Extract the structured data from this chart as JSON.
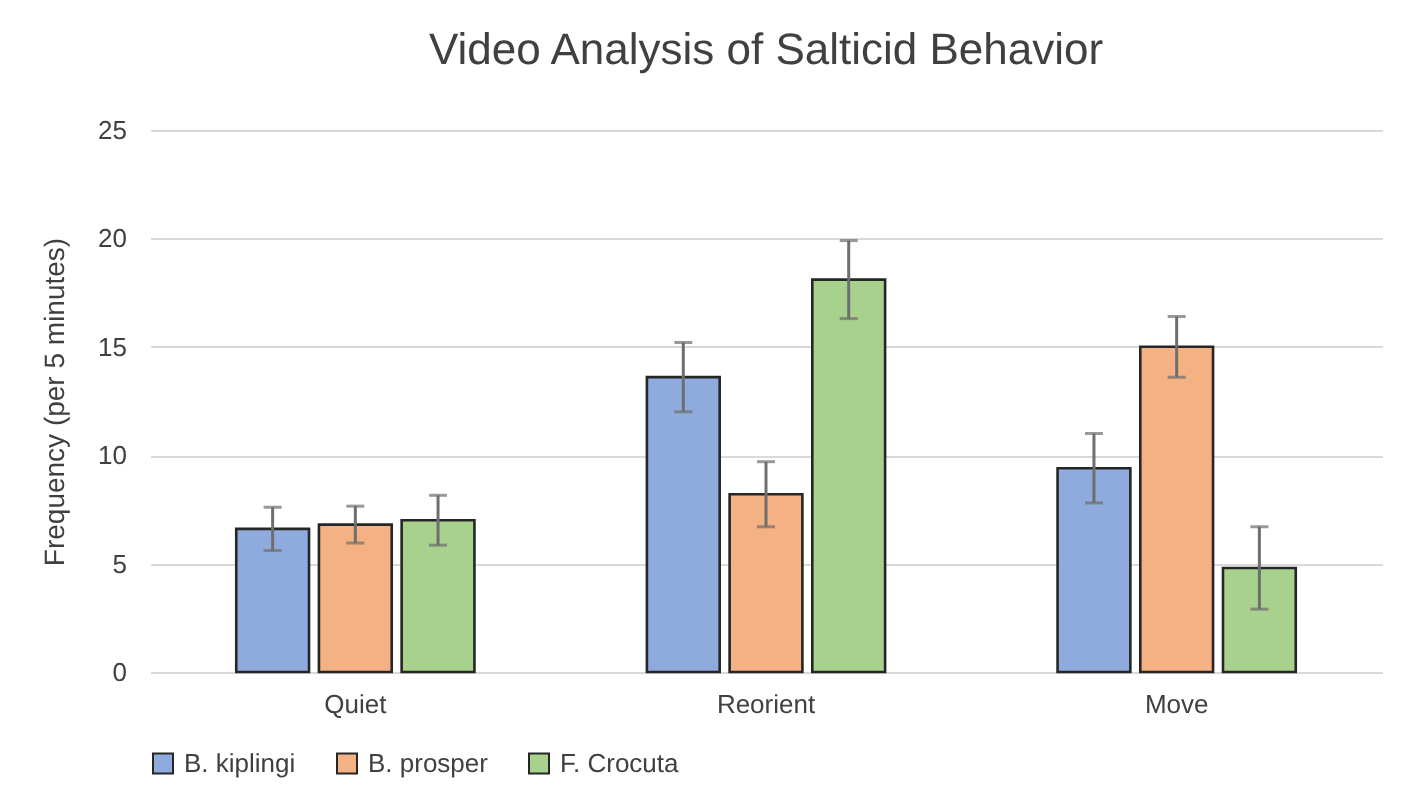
{
  "chart_data": {
    "type": "bar",
    "title": "Video Analysis of Salticid Behavior",
    "ylabel": "Frequency (per 5 minutes)",
    "categories": [
      "Quiet",
      "Reorient",
      "Move"
    ],
    "series": [
      {
        "name": "B. kiplingi",
        "color": "#8faadc",
        "values": [
          6.6,
          13.6,
          9.4
        ],
        "errors": [
          1.0,
          1.6,
          1.6
        ]
      },
      {
        "name": "B. prosper",
        "color": "#f4b183",
        "values": [
          6.8,
          8.2,
          15.0
        ],
        "errors": [
          0.85,
          1.5,
          1.4
        ]
      },
      {
        "name": "F. Crocuta",
        "color": "#a9d18e",
        "values": [
          7.0,
          18.1,
          4.8
        ],
        "errors": [
          1.15,
          1.8,
          1.9
        ]
      }
    ],
    "ylim": [
      0,
      25
    ],
    "yticks": [
      0,
      5,
      10,
      15,
      20,
      25
    ],
    "grid": "y",
    "legend": "bottom"
  }
}
